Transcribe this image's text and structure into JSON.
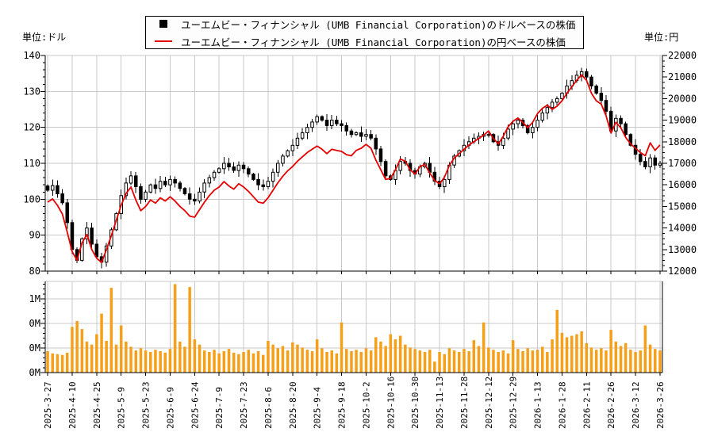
{
  "units": {
    "left": "単位:ドル",
    "right": "単位:円"
  },
  "legend": {
    "items": [
      {
        "marker": "candlestick-square",
        "color": "#000000",
        "label": "ユーエムビー・フィナンシャル (UMB Financial Corporation)のドルベースの株価"
      },
      {
        "marker": "line",
        "color": "#e60000",
        "label": "ユーエムビー・フィナンシャル (UMB Financial Corporation)の円ベースの株価"
      }
    ]
  },
  "colors": {
    "grid": "#c9c9c9",
    "axis": "#000000",
    "candle": "#000000",
    "yen_line": "#e60000",
    "volume_bar": "#f6a01a",
    "background": "#ffffff"
  },
  "chart_data": {
    "type": "candlestick+line+volume",
    "title": "",
    "grid": true,
    "legend_position": "top-center",
    "x_tick_labels": [
      "2025-3-27",
      "2025-4-10",
      "2025-4-25",
      "2025-5-9",
      "2025-5-23",
      "2025-6-9",
      "2025-6-24",
      "2025-7-9",
      "2025-7-23",
      "2025-8-6",
      "2025-8-20",
      "2025-9-4",
      "2025-9-18",
      "2025-10-2",
      "2025-10-16",
      "2025-10-30",
      "2025-11-13",
      "2025-11-28",
      "2025-12-12",
      "2025-12-29",
      "2026-1-13",
      "2026-1-28",
      "2026-2-11",
      "2026-2-26",
      "2026-3-12",
      "2026-3-26"
    ],
    "left_axis": {
      "unit": "ドル",
      "min": 80,
      "max": 140,
      "ticks": [
        140,
        130,
        120,
        110,
        100,
        90,
        80
      ],
      "minor_step": 2
    },
    "right_axis": {
      "unit": "円",
      "min": 12000,
      "max": 22000,
      "ticks": [
        22000,
        21000,
        20000,
        19000,
        18000,
        17000,
        16000,
        15000,
        14000,
        13000,
        12000
      ],
      "minor_step": 250
    },
    "volume_axis": {
      "max": 1333000,
      "tick_labels_top_to_bottom": [
        "1M",
        "0M",
        "0M",
        "0M"
      ]
    },
    "series": [
      {
        "type": "candlestick",
        "name": "ユーエムビー・フィナンシャル (UMB Financial Corporation)のドルベースの株価",
        "axis": "left",
        "color": "#000000",
        "close": [
          102.5,
          103.8,
          101.5,
          99.0,
          93.5,
          86.0,
          83.0,
          89.0,
          92.0,
          87.5,
          84.0,
          82.5,
          87.0,
          91.5,
          96.0,
          101.0,
          104.5,
          106.5,
          103.5,
          100.0,
          102.0,
          104.0,
          103.0,
          105.0,
          104.0,
          105.5,
          104.5,
          103.0,
          101.5,
          100.0,
          99.5,
          102.0,
          104.5,
          106.0,
          107.5,
          108.5,
          110.0,
          109.0,
          108.0,
          109.5,
          108.5,
          107.0,
          105.5,
          104.0,
          103.5,
          105.0,
          107.5,
          110.0,
          112.0,
          113.5,
          115.0,
          117.0,
          118.5,
          120.0,
          121.5,
          123.0,
          122.0,
          120.5,
          122.0,
          121.0,
          120.5,
          119.0,
          118.0,
          118.5,
          117.5,
          118.0,
          117.0,
          114.0,
          110.5,
          106.5,
          105.5,
          108.0,
          110.5,
          110.0,
          108.0,
          107.0,
          109.0,
          110.0,
          107.5,
          105.0,
          103.5,
          105.5,
          109.5,
          112.0,
          113.5,
          115.0,
          116.0,
          117.0,
          117.5,
          118.0,
          118.0,
          116.0,
          115.0,
          117.0,
          119.5,
          121.0,
          122.0,
          120.5,
          118.5,
          120.0,
          122.0,
          124.0,
          125.5,
          127.0,
          128.0,
          129.5,
          131.5,
          133.0,
          134.5,
          135.5,
          134.0,
          131.5,
          129.5,
          127.5,
          124.5,
          119.0,
          122.5,
          121.0,
          118.0,
          115.0,
          112.5,
          110.5,
          109.0,
          111.5,
          109.5,
          110.0
        ]
      },
      {
        "type": "line",
        "name": "ユーエムビー・フィナンシャル (UMB Financial Corporation)の円ベースの株価",
        "axis": "right",
        "color": "#e60000",
        "close": [
          15200,
          15350,
          15050,
          14650,
          13800,
          12900,
          12500,
          13300,
          13700,
          13000,
          12600,
          12400,
          13000,
          13650,
          14350,
          15050,
          15600,
          15900,
          15300,
          14800,
          15000,
          15300,
          15150,
          15400,
          15250,
          15450,
          15250,
          15000,
          14800,
          14550,
          14500,
          14850,
          15200,
          15500,
          15750,
          15900,
          16150,
          15950,
          15800,
          16050,
          15900,
          15700,
          15450,
          15200,
          15150,
          15400,
          15750,
          16100,
          16400,
          16650,
          16850,
          17100,
          17300,
          17500,
          17650,
          17800,
          17650,
          17450,
          17650,
          17600,
          17550,
          17400,
          17350,
          17600,
          17700,
          17880,
          17700,
          17150,
          16700,
          16250,
          16300,
          16700,
          17200,
          17100,
          16700,
          16500,
          16850,
          16950,
          16550,
          16200,
          16050,
          16350,
          16900,
          17250,
          17450,
          17650,
          17850,
          18000,
          18150,
          18300,
          18500,
          18150,
          17900,
          18250,
          18700,
          18950,
          19100,
          18900,
          18650,
          18900,
          19300,
          19550,
          19700,
          19500,
          19650,
          19900,
          20250,
          20550,
          20850,
          21100,
          20850,
          20250,
          19900,
          19750,
          19200,
          18400,
          18900,
          18650,
          18200,
          17900,
          17700,
          17500,
          17350,
          17950,
          17600,
          17850
        ]
      },
      {
        "type": "bar",
        "axis": "volume",
        "color": "#f6a01a",
        "values_thousands": [
          290,
          260,
          250,
          240,
          270,
          620,
          700,
          590,
          420,
          380,
          520,
          800,
          430,
          1150,
          380,
          640,
          420,
          350,
          300,
          330,
          300,
          280,
          310,
          290,
          270,
          320,
          1200,
          420,
          350,
          1160,
          450,
          380,
          300,
          280,
          310,
          260,
          290,
          320,
          270,
          250,
          280,
          310,
          260,
          290,
          240,
          430,
          380,
          330,
          360,
          300,
          410,
          380,
          340,
          310,
          290,
          450,
          330,
          280,
          300,
          260,
          680,
          320,
          290,
          310,
          280,
          330,
          300,
          480,
          420,
          360,
          520,
          450,
          500,
          380,
          340,
          320,
          300,
          280,
          310,
          150,
          280,
          250,
          330,
          300,
          280,
          320,
          290,
          440,
          360,
          680,
          340,
          310,
          280,
          300,
          260,
          440,
          320,
          290,
          330,
          300,
          310,
          350,
          280,
          450,
          850,
          540,
          480,
          500,
          520,
          560,
          400,
          340,
          310,
          330,
          300,
          580,
          420,
          360,
          400,
          310,
          280,
          300,
          640,
          380,
          320,
          300
        ]
      }
    ]
  }
}
